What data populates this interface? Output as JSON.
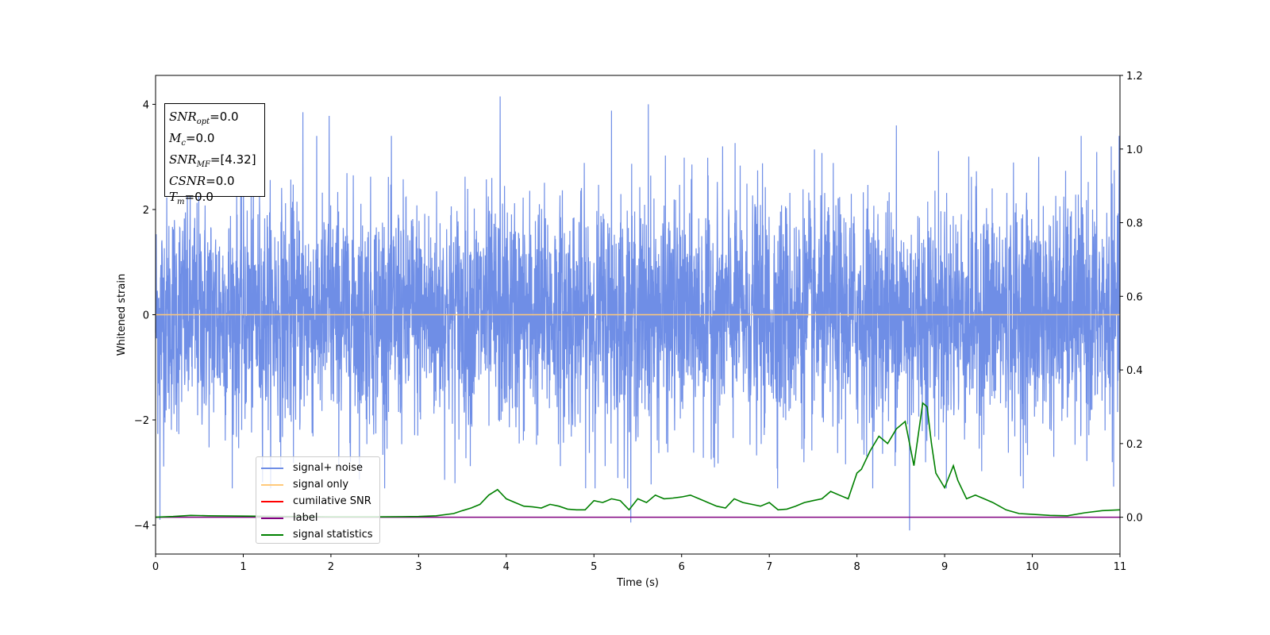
{
  "chart_data": {
    "type": "line",
    "xlabel": "Time (s)",
    "ylabel": "Whitened strain",
    "xlim": [
      0,
      11
    ],
    "ylim_left": [
      -4.55,
      4.55
    ],
    "ylim_right": [
      -0.1,
      1.2
    ],
    "x_ticks": [
      0,
      1,
      2,
      3,
      4,
      5,
      6,
      7,
      8,
      9,
      10,
      11
    ],
    "y_ticks_left": [
      -4,
      -2,
      0,
      2,
      4
    ],
    "y_ticks_right": [
      0.0,
      0.2,
      0.4,
      0.6,
      0.8,
      1.0,
      1.2
    ],
    "x_tick_labels": [
      "0",
      "1",
      "2",
      "3",
      "4",
      "5",
      "6",
      "7",
      "8",
      "9",
      "10",
      "11"
    ],
    "y_tick_labels_left": [
      "−4",
      "−2",
      "0",
      "2",
      "4"
    ],
    "y_tick_labels_right": [
      "0.0",
      "0.2",
      "0.4",
      "0.6",
      "0.8",
      "1.0",
      "1.2"
    ],
    "series": [
      {
        "name": "signal+ noise",
        "color": "#6f8ee6",
        "axis": "left",
        "sample_rate_hz": 400,
        "envelope_typical": [
          -1.7,
          1.7
        ],
        "peaks": [
          {
            "x": 1.68,
            "y": 3.85
          },
          {
            "x": 1.98,
            "y": 3.78
          },
          {
            "x": 3.93,
            "y": 4.15
          },
          {
            "x": 5.2,
            "y": 3.88
          },
          {
            "x": 5.62,
            "y": 4.0
          },
          {
            "x": 8.45,
            "y": 3.6
          },
          {
            "x": 10.9,
            "y": 3.2
          },
          {
            "x": 0.05,
            "y": -3.9
          },
          {
            "x": 5.42,
            "y": -3.95
          },
          {
            "x": 8.6,
            "y": -4.1
          }
        ]
      },
      {
        "name": "signal only",
        "color": "#ffc97a",
        "axis": "left",
        "constant": 0.0
      },
      {
        "name": "cumilative SNR",
        "color": "#ff0000",
        "axis": "right",
        "constant": 0.0
      },
      {
        "name": "label",
        "color": "#800080",
        "axis": "right",
        "constant": 0.0
      },
      {
        "name": "signal statistics",
        "color": "#008000",
        "axis": "right",
        "x": [
          0,
          0.2,
          0.4,
          0.6,
          1.0,
          1.5,
          2.0,
          2.5,
          3.0,
          3.2,
          3.4,
          3.5,
          3.6,
          3.7,
          3.8,
          3.9,
          4.0,
          4.1,
          4.2,
          4.3,
          4.4,
          4.5,
          4.6,
          4.7,
          4.8,
          4.9,
          5.0,
          5.1,
          5.2,
          5.3,
          5.4,
          5.5,
          5.6,
          5.7,
          5.8,
          5.9,
          6.0,
          6.1,
          6.2,
          6.3,
          6.4,
          6.5,
          6.6,
          6.7,
          6.8,
          6.9,
          7.0,
          7.1,
          7.2,
          7.3,
          7.4,
          7.5,
          7.6,
          7.7,
          7.8,
          7.9,
          8.0,
          8.05,
          8.15,
          8.25,
          8.35,
          8.45,
          8.55,
          8.65,
          8.75,
          8.8,
          8.85,
          8.9,
          9.0,
          9.1,
          9.15,
          9.25,
          9.35,
          9.45,
          9.55,
          9.7,
          9.85,
          10.0,
          10.2,
          10.4,
          10.6,
          10.8,
          11.0
        ],
        "values": [
          0.0,
          0.002,
          0.005,
          0.004,
          0.003,
          0.002,
          0.001,
          0.001,
          0.002,
          0.004,
          0.01,
          0.018,
          0.025,
          0.035,
          0.06,
          0.075,
          0.05,
          0.04,
          0.03,
          0.028,
          0.025,
          0.035,
          0.03,
          0.022,
          0.02,
          0.02,
          0.045,
          0.04,
          0.05,
          0.045,
          0.02,
          0.05,
          0.04,
          0.06,
          0.05,
          0.052,
          0.055,
          0.06,
          0.05,
          0.04,
          0.03,
          0.025,
          0.05,
          0.04,
          0.035,
          0.03,
          0.04,
          0.02,
          0.022,
          0.03,
          0.04,
          0.045,
          0.05,
          0.07,
          0.06,
          0.05,
          0.12,
          0.13,
          0.18,
          0.22,
          0.2,
          0.24,
          0.26,
          0.14,
          0.31,
          0.3,
          0.2,
          0.12,
          0.08,
          0.14,
          0.1,
          0.05,
          0.06,
          0.05,
          0.04,
          0.02,
          0.01,
          0.008,
          0.005,
          0.004,
          0.012,
          0.018,
          0.02
        ]
      }
    ]
  },
  "info_box": {
    "snr_opt_symbol": "SNR",
    "snr_opt_sub": "opt",
    "snr_opt_value": "=0.0",
    "mc_symbol": "M",
    "mc_sub": "c",
    "mc_value": "=0.0",
    "snr_mf_symbol": "SNR",
    "snr_mf_sub": "MF",
    "snr_mf_value": "=[4.32]",
    "csnr_symbol": "CSNR",
    "csnr_value": "=0.0",
    "tm_symbol": "T",
    "tm_sub": "m",
    "tm_value": "=0.0"
  },
  "legend": [
    {
      "label": "signal+ noise",
      "color": "#6f8ee6"
    },
    {
      "label": "signal only",
      "color": "#ffc97a"
    },
    {
      "label": "cumilative SNR",
      "color": "#ff0000"
    },
    {
      "label": "label",
      "color": "#800080"
    },
    {
      "label": "signal statistics",
      "color": "#008000"
    }
  ]
}
